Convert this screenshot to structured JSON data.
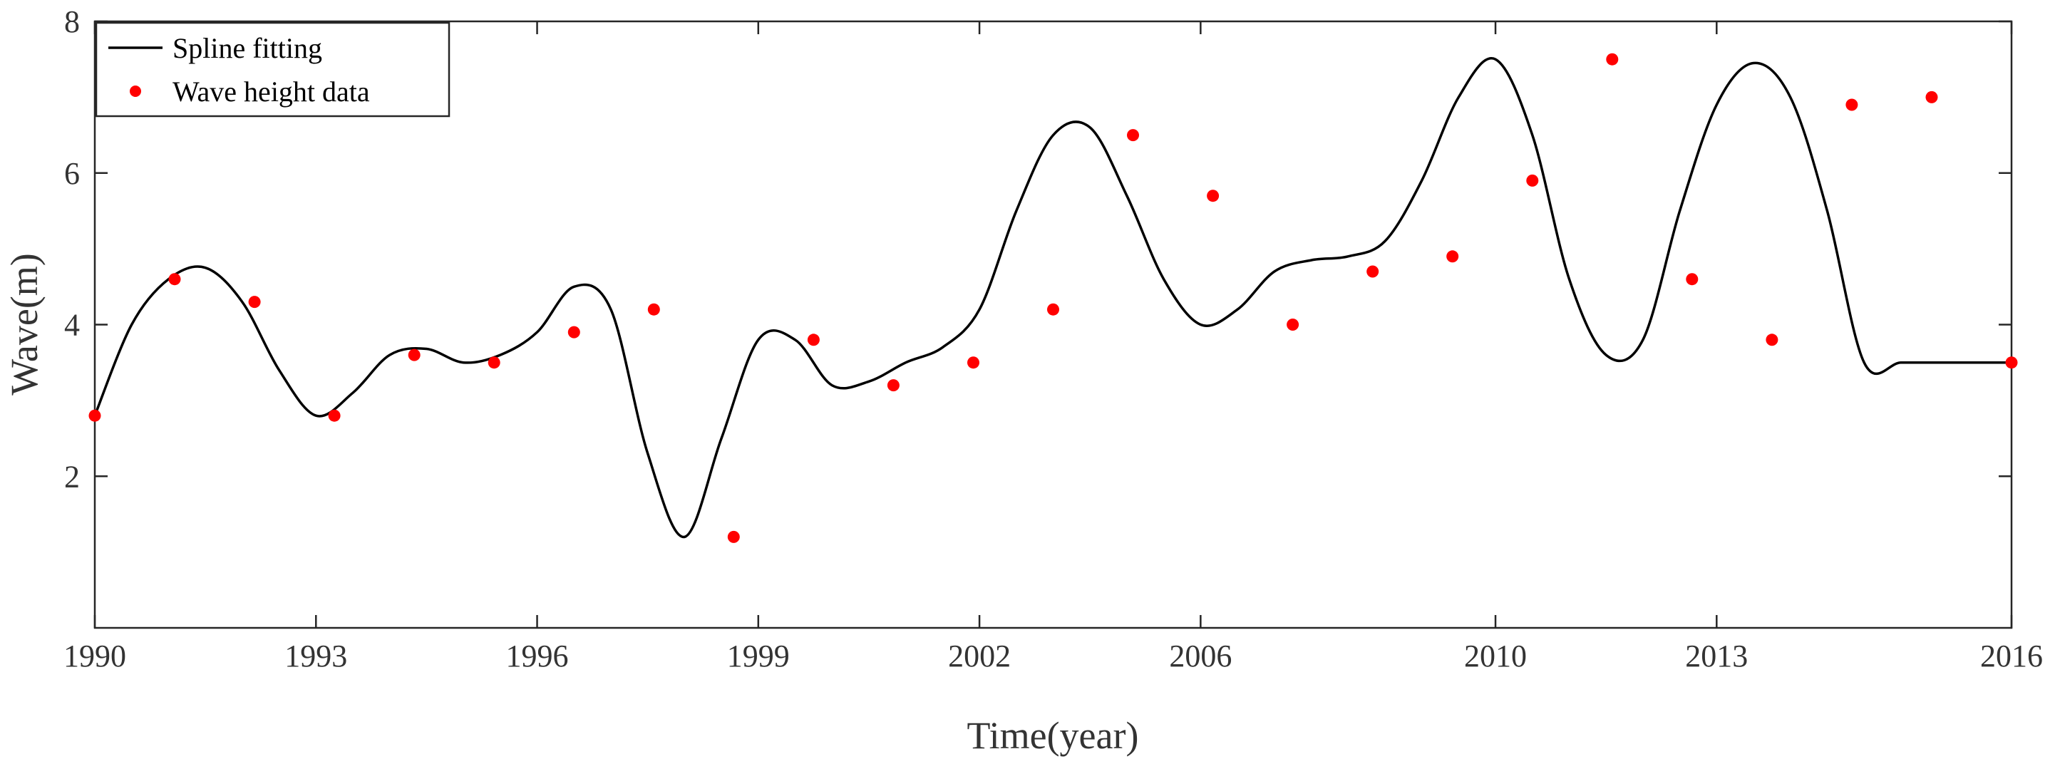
{
  "chart_data": {
    "type": "line",
    "xlabel": "Time(year)",
    "ylabel": "Wave(m)",
    "xlim": [
      0,
      26
    ],
    "ylim": [
      0,
      8
    ],
    "x_tick_labels": [
      "1990",
      "1993",
      "1996",
      "1999",
      "2002",
      "2006",
      "2010",
      "2013",
      "2016"
    ],
    "x_tick_positions": [
      0,
      3,
      6,
      9,
      12,
      15,
      19,
      22,
      26
    ],
    "y_ticks": [
      2,
      4,
      6,
      8
    ],
    "grid": false,
    "legend_position": "top-left",
    "series": [
      {
        "name": "Spline fitting",
        "kind": "line",
        "color": "#000000",
        "x": [
          0,
          0.5,
          1,
          1.5,
          2,
          2.5,
          3,
          3.5,
          4,
          4.5,
          5,
          5.5,
          6,
          6.5,
          7,
          7.5,
          8,
          8.5,
          9,
          9.5,
          10,
          10.5,
          11,
          11.5,
          12,
          12.5,
          13,
          13.5,
          14,
          14.5,
          15,
          15.5,
          16,
          16.5,
          17,
          17.5,
          18,
          18.5,
          19,
          19.5,
          20,
          20.5,
          21,
          21.5,
          22,
          22.5,
          23,
          23.5,
          24,
          24.5,
          25,
          25.5,
          26
        ],
        "y": [
          2.8,
          4.0,
          4.6,
          4.75,
          4.3,
          3.4,
          2.8,
          3.1,
          3.6,
          3.68,
          3.5,
          3.6,
          3.9,
          4.5,
          4.2,
          2.3,
          1.2,
          2.5,
          3.8,
          3.8,
          3.2,
          3.25,
          3.5,
          3.7,
          4.2,
          5.5,
          6.5,
          6.6,
          5.7,
          4.6,
          4.0,
          4.2,
          4.7,
          4.85,
          4.9,
          5.1,
          5.9,
          7.0,
          7.5,
          6.5,
          4.6,
          3.6,
          3.8,
          5.5,
          6.9,
          7.45,
          7.0,
          5.5,
          3.5,
          3.5,
          3.5,
          3.5,
          3.5
        ]
      },
      {
        "name": "Wave height data",
        "kind": "scatter",
        "color": "#ff0000",
        "x": [
          0,
          1,
          2,
          3,
          4,
          5,
          6,
          7,
          8,
          9,
          10,
          11,
          12,
          13,
          14,
          15,
          16,
          17,
          18,
          19,
          20,
          21,
          22,
          23,
          24
        ],
        "y": [
          2.8,
          4.6,
          4.3,
          2.8,
          3.6,
          3.5,
          3.9,
          4.2,
          1.2,
          3.8,
          3.2,
          3.5,
          4.2,
          6.5,
          5.7,
          4.0,
          4.7,
          4.9,
          5.9,
          7.5,
          4.6,
          3.8,
          6.9,
          7.0,
          3.5
        ]
      }
    ]
  }
}
